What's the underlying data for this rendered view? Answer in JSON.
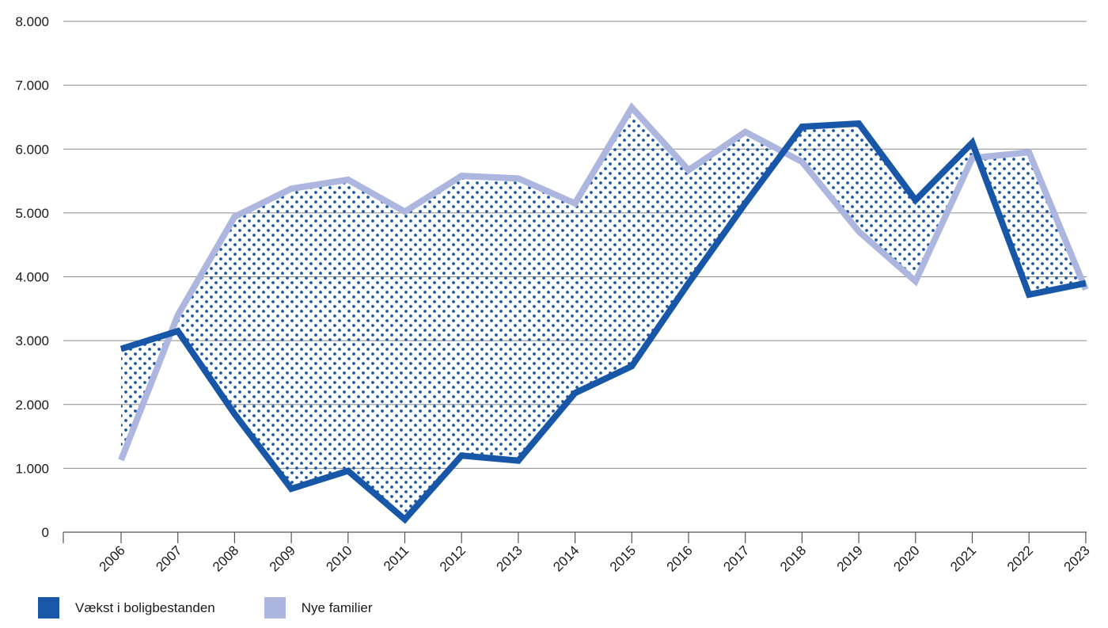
{
  "chart_data": {
    "type": "line",
    "title": "",
    "xlabel": "",
    "ylabel": "",
    "categories": [
      "2006",
      "2007",
      "2008",
      "2009",
      "2010",
      "2011",
      "2012",
      "2013",
      "2014",
      "2015",
      "2016",
      "2017",
      "2018",
      "2019",
      "2020",
      "2021",
      "2022",
      "2023"
    ],
    "ylim": [
      0,
      8000
    ],
    "yticks": [
      0,
      1000,
      2000,
      3000,
      4000,
      5000,
      6000,
      7000,
      8000
    ],
    "ytick_labels": [
      "0",
      "1.000",
      "2.000",
      "3.000",
      "4.000",
      "5.000",
      "6.000",
      "7.000",
      "8.000"
    ],
    "grid": true,
    "legend_position": "bottom-left",
    "fill_between_series": true,
    "series": [
      {
        "name": "Vækst i boligbestanden",
        "color": "#1857a8",
        "values": [
          2870,
          3150,
          1850,
          680,
          960,
          200,
          1200,
          1120,
          2180,
          2600,
          3900,
          5150,
          6350,
          6400,
          5200,
          6100,
          3720,
          3900
        ]
      },
      {
        "name": "Nye familier",
        "color": "#acb6de",
        "values": [
          1130,
          3400,
          4940,
          5380,
          5520,
          5020,
          5580,
          5540,
          5150,
          6650,
          5670,
          6270,
          5800,
          4710,
          3930,
          5860,
          5950,
          3800
        ]
      }
    ]
  }
}
